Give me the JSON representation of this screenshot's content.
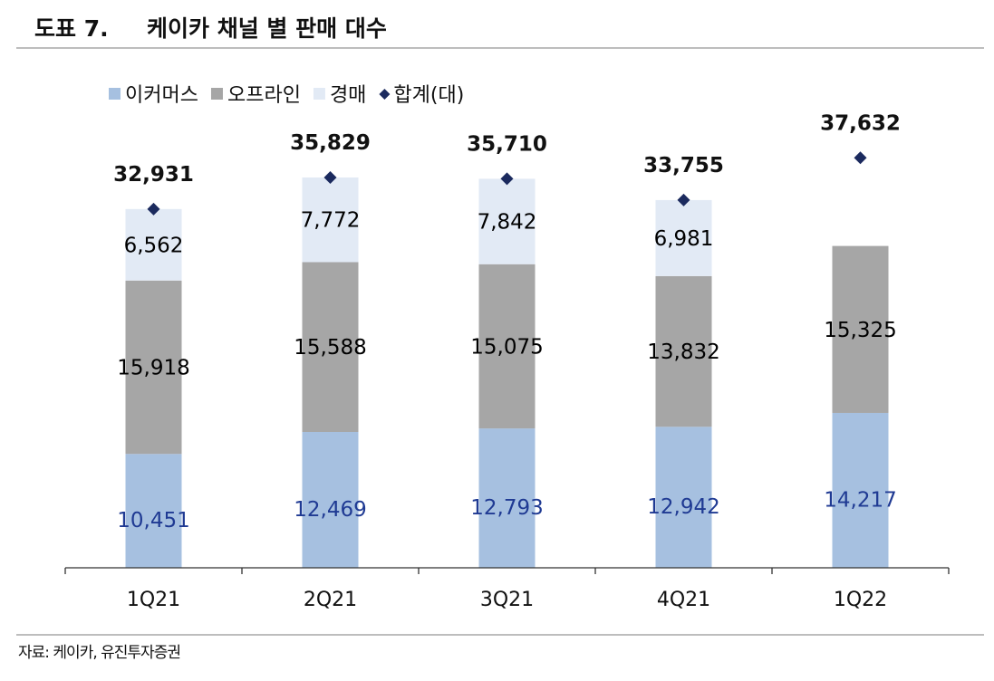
{
  "header": {
    "figure_no": "도표 7.",
    "title": "케이카 채널 별 판매 대수"
  },
  "source": "자료: 케이카, 유진투자증권",
  "chart_data": {
    "type": "bar",
    "stacked": true,
    "title": "케이카 채널 별 판매 대수",
    "categories": [
      "1Q21",
      "2Q21",
      "3Q21",
      "4Q21",
      "1Q22"
    ],
    "series": [
      {
        "name": "이커머스",
        "values": [
          10451,
          12469,
          12793,
          12942,
          14217
        ],
        "color": "#A6C0E0",
        "label_color": "#1F3A93"
      },
      {
        "name": "오프라인",
        "values": [
          15918,
          15588,
          15075,
          13832,
          15325
        ],
        "color": "#A6A6A6",
        "label_color": "#000000"
      },
      {
        "name": "경매",
        "values": [
          6562,
          7772,
          7842,
          6981,
          null
        ],
        "color": "#E2EAF5",
        "label_color": "#000000"
      }
    ],
    "total": {
      "name": "합계(대)",
      "values": [
        32931,
        35829,
        35710,
        33755,
        37632
      ],
      "marker": "diamond",
      "color": "#1B2A5E"
    },
    "ylim": [
      0,
      45000
    ],
    "y_axis_visible": false,
    "grid": false,
    "legend_position": "top",
    "xlabel": "",
    "ylabel": ""
  }
}
